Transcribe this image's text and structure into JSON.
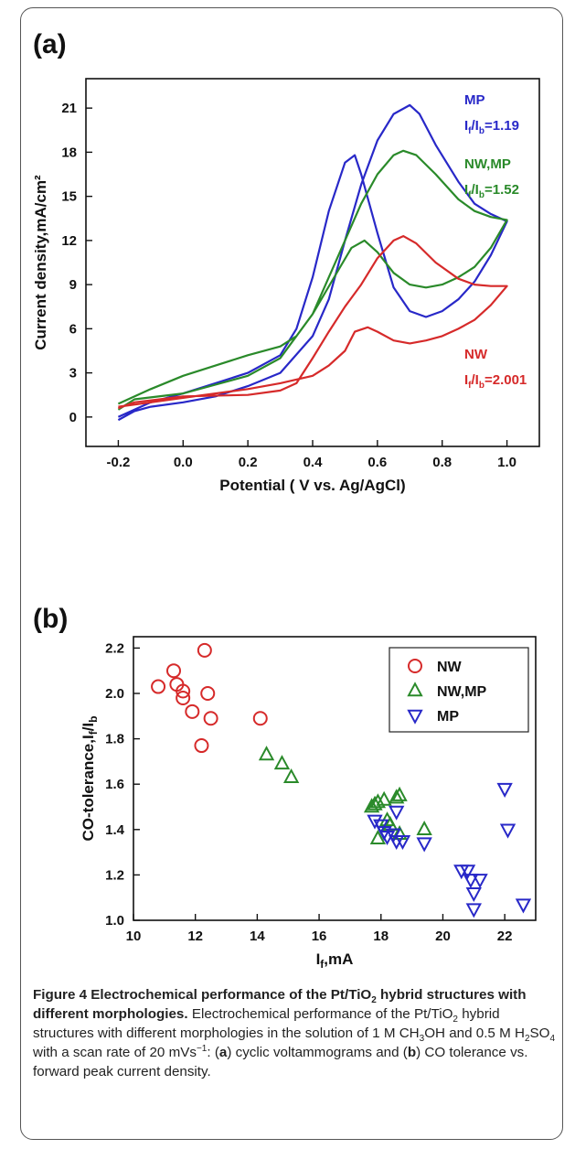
{
  "colors": {
    "NW": "#d62a2a",
    "NW,MP": "#2a8a2a",
    "MP": "#2828c8",
    "axis": "#111111"
  },
  "chart_data": [
    {
      "panel": "(a)",
      "type": "line",
      "xlabel": "Potential ( V vs. Ag/AgCl)",
      "ylabel": "Current density,mA/cm²",
      "xlim": [
        -0.3,
        1.1
      ],
      "ylim": [
        -2,
        23
      ],
      "xticks": [
        -0.2,
        0.0,
        0.2,
        0.4,
        0.6,
        0.8,
        1.0
      ],
      "xtick_labels": [
        "-0.2",
        "0.0",
        "0.2",
        "0.4",
        "0.6",
        "0.8",
        "1.0"
      ],
      "yticks": [
        0,
        3,
        6,
        9,
        12,
        15,
        18,
        21
      ],
      "grid": false,
      "series": [
        {
          "name": "MP",
          "ratio_label": "If/Ib=1.19",
          "forward": [
            [
              -0.2,
              -0.2
            ],
            [
              -0.15,
              0.4
            ],
            [
              -0.1,
              0.7
            ],
            [
              0.0,
              1.0
            ],
            [
              0.1,
              1.4
            ],
            [
              0.2,
              2.1
            ],
            [
              0.3,
              3.0
            ],
            [
              0.4,
              5.5
            ],
            [
              0.45,
              8.0
            ],
            [
              0.5,
              12.0
            ],
            [
              0.55,
              15.8
            ],
            [
              0.6,
              18.8
            ],
            [
              0.65,
              20.6
            ],
            [
              0.7,
              21.2
            ],
            [
              0.73,
              20.6
            ],
            [
              0.78,
              18.5
            ],
            [
              0.85,
              16.0
            ],
            [
              0.9,
              14.5
            ],
            [
              0.95,
              13.8
            ],
            [
              1.0,
              13.3
            ]
          ],
          "backward": [
            [
              1.0,
              13.3
            ],
            [
              0.95,
              11.0
            ],
            [
              0.9,
              9.2
            ],
            [
              0.85,
              8.0
            ],
            [
              0.8,
              7.2
            ],
            [
              0.75,
              6.8
            ],
            [
              0.7,
              7.2
            ],
            [
              0.65,
              8.8
            ],
            [
              0.6,
              12.5
            ],
            [
              0.55,
              16.5
            ],
            [
              0.53,
              17.8
            ],
            [
              0.5,
              17.3
            ],
            [
              0.45,
              14.0
            ],
            [
              0.4,
              9.5
            ],
            [
              0.35,
              6.0
            ],
            [
              0.3,
              4.2
            ],
            [
              0.2,
              3.0
            ],
            [
              0.1,
              2.3
            ],
            [
              0.0,
              1.6
            ],
            [
              -0.1,
              1.0
            ],
            [
              -0.2,
              0.0
            ]
          ]
        },
        {
          "name": "NW,MP",
          "ratio_label": "If/Ib=1.52",
          "forward": [
            [
              -0.2,
              0.5
            ],
            [
              -0.15,
              1.2
            ],
            [
              0.0,
              1.6
            ],
            [
              0.1,
              2.2
            ],
            [
              0.2,
              2.8
            ],
            [
              0.3,
              4.0
            ],
            [
              0.4,
              7.0
            ],
            [
              0.45,
              9.5
            ],
            [
              0.5,
              12.0
            ],
            [
              0.55,
              14.5
            ],
            [
              0.6,
              16.5
            ],
            [
              0.65,
              17.8
            ],
            [
              0.68,
              18.1
            ],
            [
              0.72,
              17.8
            ],
            [
              0.78,
              16.5
            ],
            [
              0.85,
              14.8
            ],
            [
              0.9,
              14.0
            ],
            [
              0.95,
              13.6
            ],
            [
              1.0,
              13.4
            ]
          ],
          "backward": [
            [
              1.0,
              13.4
            ],
            [
              0.95,
              11.5
            ],
            [
              0.9,
              10.2
            ],
            [
              0.85,
              9.5
            ],
            [
              0.8,
              9.0
            ],
            [
              0.75,
              8.8
            ],
            [
              0.7,
              9.0
            ],
            [
              0.65,
              9.8
            ],
            [
              0.6,
              11.2
            ],
            [
              0.56,
              12.0
            ],
            [
              0.52,
              11.5
            ],
            [
              0.48,
              10.0
            ],
            [
              0.4,
              7.0
            ],
            [
              0.35,
              5.5
            ],
            [
              0.3,
              4.8
            ],
            [
              0.2,
              4.2
            ],
            [
              0.1,
              3.5
            ],
            [
              0.0,
              2.8
            ],
            [
              -0.1,
              1.9
            ],
            [
              -0.2,
              0.9
            ]
          ]
        },
        {
          "name": "NW",
          "ratio_label": "If/Ib=2.001",
          "forward": [
            [
              -0.2,
              0.6
            ],
            [
              -0.15,
              1.0
            ],
            [
              0.0,
              1.4
            ],
            [
              0.2,
              1.5
            ],
            [
              0.3,
              1.8
            ],
            [
              0.35,
              2.3
            ],
            [
              0.4,
              4.0
            ],
            [
              0.45,
              5.8
            ],
            [
              0.5,
              7.5
            ],
            [
              0.55,
              9.0
            ],
            [
              0.6,
              10.8
            ],
            [
              0.65,
              12.0
            ],
            [
              0.68,
              12.3
            ],
            [
              0.72,
              11.8
            ],
            [
              0.78,
              10.5
            ],
            [
              0.85,
              9.4
            ],
            [
              0.9,
              9.0
            ],
            [
              0.95,
              8.9
            ],
            [
              1.0,
              8.9
            ]
          ],
          "backward": [
            [
              1.0,
              8.9
            ],
            [
              0.95,
              7.6
            ],
            [
              0.9,
              6.6
            ],
            [
              0.85,
              6.0
            ],
            [
              0.8,
              5.5
            ],
            [
              0.75,
              5.2
            ],
            [
              0.7,
              5.0
            ],
            [
              0.65,
              5.2
            ],
            [
              0.6,
              5.8
            ],
            [
              0.57,
              6.1
            ],
            [
              0.53,
              5.8
            ],
            [
              0.5,
              4.5
            ],
            [
              0.45,
              3.5
            ],
            [
              0.4,
              2.8
            ],
            [
              0.3,
              2.3
            ],
            [
              0.2,
              1.9
            ],
            [
              0.1,
              1.6
            ],
            [
              0.0,
              1.3
            ],
            [
              -0.1,
              1.0
            ],
            [
              -0.2,
              0.7
            ]
          ]
        }
      ]
    },
    {
      "panel": "(b)",
      "type": "scatter",
      "xlabel": "If,mA",
      "ylabel": "CO-tolerance,If/Ib",
      "xlim": [
        10,
        23
      ],
      "ylim": [
        1.0,
        2.25
      ],
      "xticks": [
        10,
        12,
        14,
        16,
        18,
        20,
        22
      ],
      "yticks": [
        1.0,
        1.2,
        1.4,
        1.6,
        1.8,
        2.0,
        2.2
      ],
      "ytick_labels": [
        "1.0",
        "1.2",
        "1.4",
        "1.6",
        "1.8",
        "2.0",
        "2.2"
      ],
      "legend_position": "top-right",
      "grid": false,
      "series": [
        {
          "name": "NW",
          "marker": "circle",
          "points": [
            [
              10.8,
              2.03
            ],
            [
              11.3,
              2.1
            ],
            [
              11.4,
              2.04
            ],
            [
              11.6,
              2.01
            ],
            [
              11.6,
              1.98
            ],
            [
              11.9,
              1.92
            ],
            [
              12.2,
              1.77
            ],
            [
              12.3,
              2.19
            ],
            [
              12.4,
              2.0
            ],
            [
              12.5,
              1.89
            ],
            [
              14.1,
              1.89
            ]
          ]
        },
        {
          "name": "NW,MP",
          "marker": "triangle-up",
          "points": [
            [
              14.3,
              1.73
            ],
            [
              14.8,
              1.69
            ],
            [
              15.1,
              1.63
            ],
            [
              17.7,
              1.5
            ],
            [
              17.8,
              1.51
            ],
            [
              17.9,
              1.52
            ],
            [
              18.1,
              1.53
            ],
            [
              18.2,
              1.44
            ],
            [
              18.5,
              1.54
            ],
            [
              18.6,
              1.55
            ],
            [
              17.9,
              1.36
            ],
            [
              18.3,
              1.42
            ],
            [
              18.6,
              1.38
            ],
            [
              19.4,
              1.4
            ]
          ]
        },
        {
          "name": "MP",
          "marker": "triangle-down",
          "points": [
            [
              17.8,
              1.44
            ],
            [
              18.0,
              1.42
            ],
            [
              18.1,
              1.39
            ],
            [
              18.2,
              1.37
            ],
            [
              18.4,
              1.38
            ],
            [
              18.5,
              1.35
            ],
            [
              18.5,
              1.48
            ],
            [
              18.7,
              1.35
            ],
            [
              19.4,
              1.34
            ],
            [
              20.6,
              1.22
            ],
            [
              20.8,
              1.22
            ],
            [
              20.9,
              1.18
            ],
            [
              21.0,
              1.12
            ],
            [
              21.0,
              1.05
            ],
            [
              21.2,
              1.18
            ],
            [
              22.0,
              1.58
            ],
            [
              22.1,
              1.4
            ],
            [
              22.6,
              1.07
            ]
          ]
        }
      ]
    }
  ],
  "caption": {
    "title_a": "Figure 4 Electrochemical performance of the Pt/TiO",
    "title_sub": "2",
    "title_b": " hybrid structures with different morphologies.",
    "t1": " Electrochemical performance of the Pt/TiO",
    "s1": "2",
    "t2": " hybrid structures with different morphologies in the solution of 1 M CH",
    "s2": "3",
    "t3": "OH and 0.5 M H",
    "s3": "2",
    "t4": "SO",
    "s4": "4",
    "t5": " with a scan rate of 20 mVs",
    "sup": "−1",
    "t6": ": (",
    "ba": "a",
    "t7": ") cyclic voltammograms and (",
    "bb": "b",
    "t8": ") CO tolerance vs. forward peak current density."
  }
}
